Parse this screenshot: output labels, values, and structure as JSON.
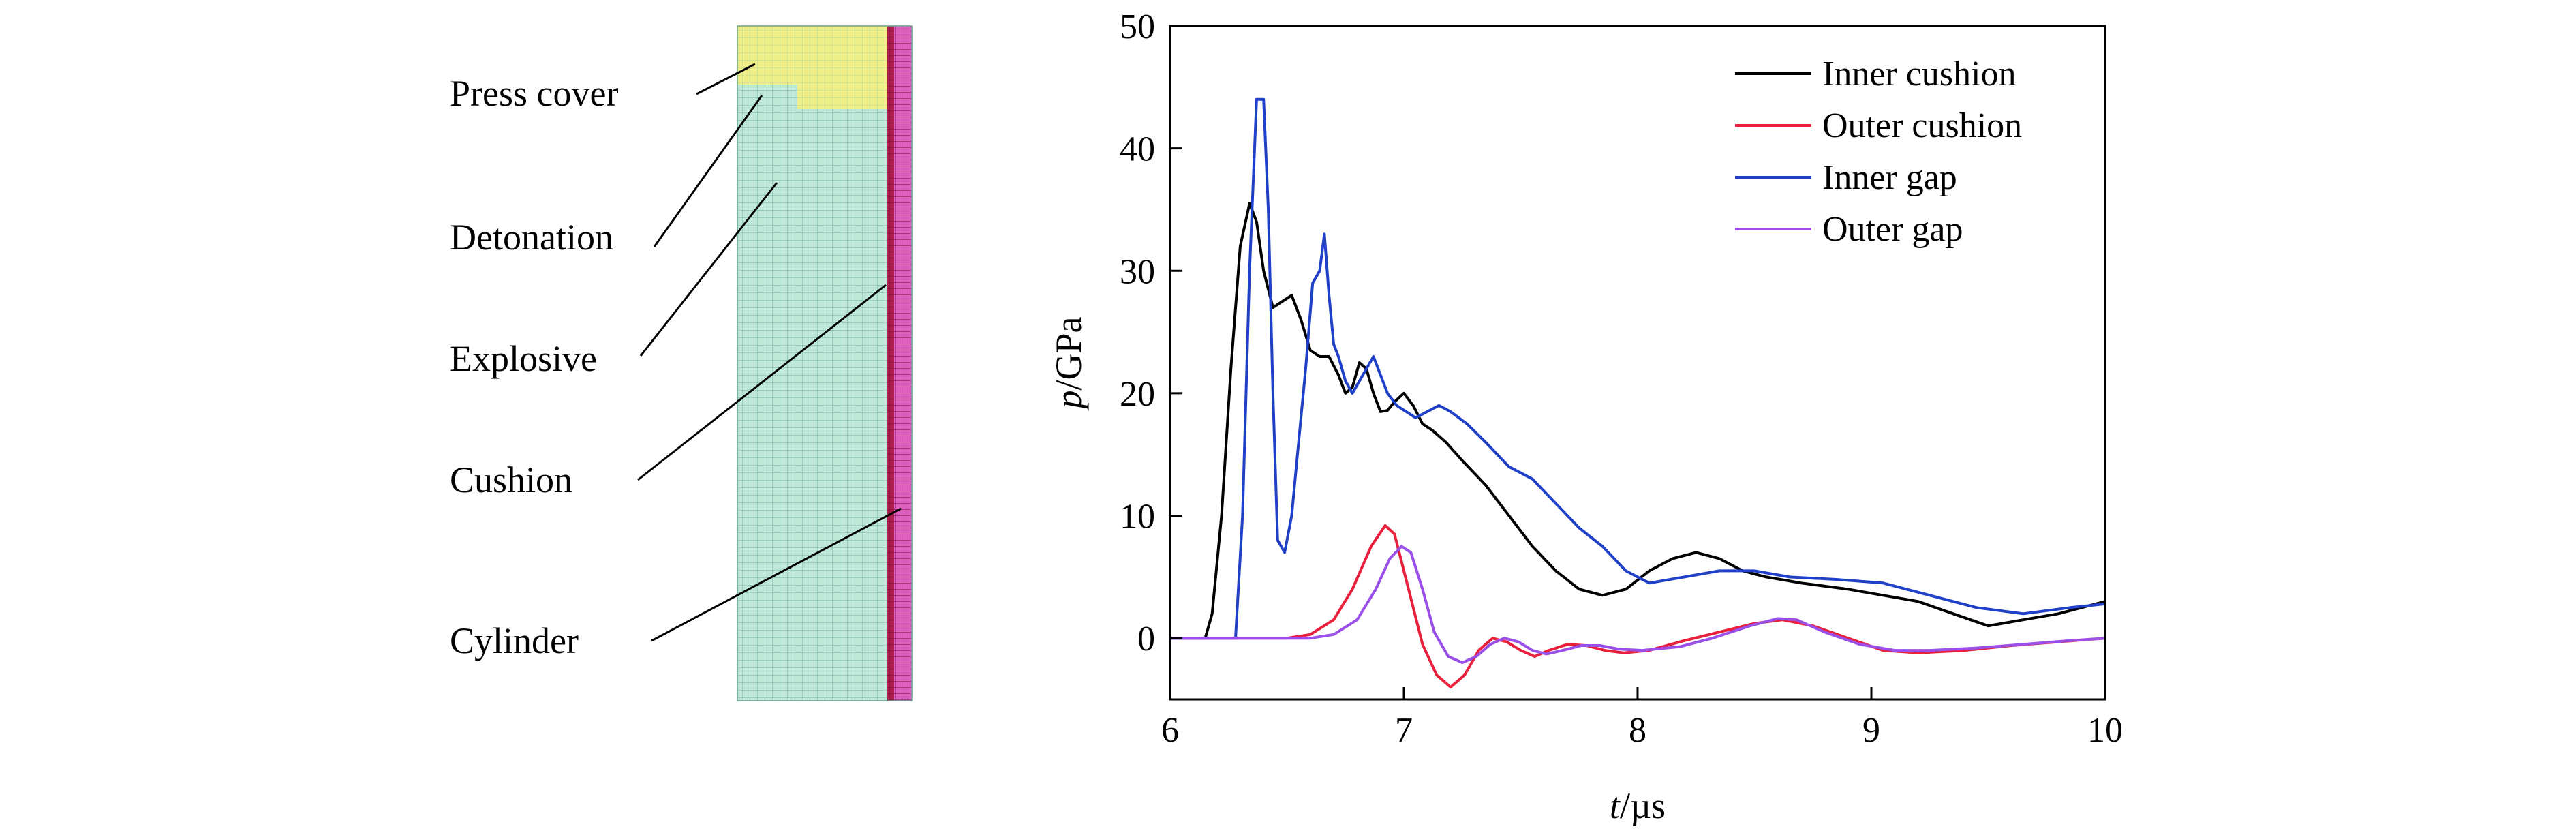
{
  "diagram": {
    "labels": [
      "Press cover",
      "Detonation",
      "Explosive",
      "Cushion",
      "Cylinder"
    ],
    "colors": {
      "press_cover": "#f0f08a",
      "explosive": "#bfe8d8",
      "cushion": "#c03060",
      "cylinder": "#e060c0",
      "grid": "#7fbfae"
    }
  },
  "chart_data": {
    "type": "line",
    "xlabel_var": "t",
    "xlabel_unit": "/µs",
    "ylabel_var": "p",
    "ylabel_unit": "/GPa",
    "xlim": [
      6,
      10
    ],
    "ylim": [
      -5,
      50
    ],
    "xticks": [
      "6",
      "7",
      "8",
      "9",
      "10"
    ],
    "yticks": [
      "0",
      "10",
      "20",
      "30",
      "40",
      "50"
    ],
    "legend_position": "top-right",
    "series": [
      {
        "name": "Inner cushion",
        "color": "#000000",
        "x": [
          6.0,
          6.15,
          6.18,
          6.22,
          6.26,
          6.3,
          6.34,
          6.37,
          6.4,
          6.44,
          6.48,
          6.52,
          6.56,
          6.6,
          6.64,
          6.68,
          6.72,
          6.75,
          6.78,
          6.81,
          6.84,
          6.87,
          6.9,
          6.93,
          6.96,
          7.0,
          7.04,
          7.08,
          7.12,
          7.18,
          7.25,
          7.35,
          7.45,
          7.55,
          7.65,
          7.75,
          7.85,
          7.95,
          8.05,
          8.15,
          8.25,
          8.35,
          8.45,
          8.55,
          8.7,
          8.9,
          9.05,
          9.2,
          9.35,
          9.5,
          9.65,
          9.8,
          10.0
        ],
        "y": [
          0,
          0,
          2,
          10,
          22,
          32,
          35.5,
          34,
          30,
          27,
          27.5,
          28,
          26,
          23.5,
          23,
          23,
          21.5,
          20,
          20.5,
          22.5,
          22,
          20,
          18.5,
          18.6,
          19.3,
          20,
          19,
          17.5,
          17,
          16,
          14.5,
          12.5,
          10,
          7.5,
          5.5,
          4,
          3.5,
          4,
          5.5,
          6.5,
          7,
          6.5,
          5.5,
          5,
          4.5,
          4,
          3.5,
          3,
          2,
          1,
          1.5,
          2,
          3
        ]
      },
      {
        "name": "Outer cushion",
        "color": "#e8203c",
        "x": [
          6.0,
          6.5,
          6.6,
          6.7,
          6.78,
          6.86,
          6.92,
          6.96,
          7.02,
          7.08,
          7.14,
          7.2,
          7.26,
          7.32,
          7.38,
          7.44,
          7.5,
          7.56,
          7.62,
          7.7,
          7.78,
          7.86,
          7.94,
          8.05,
          8.2,
          8.35,
          8.5,
          8.62,
          8.75,
          8.9,
          9.05,
          9.2,
          9.4,
          9.6,
          9.8,
          10.0
        ],
        "y": [
          0,
          0,
          0.3,
          1.5,
          4,
          7.5,
          9.2,
          8.5,
          4,
          -0.5,
          -3,
          -4,
          -3,
          -1,
          0,
          -0.3,
          -1,
          -1.5,
          -1,
          -0.5,
          -0.6,
          -1,
          -1.2,
          -1,
          -0.2,
          0.5,
          1.2,
          1.5,
          1,
          0,
          -1,
          -1.2,
          -1,
          -0.6,
          -0.3,
          0
        ]
      },
      {
        "name": "Inner gap",
        "color": "#2040c8",
        "x": [
          6.0,
          6.28,
          6.31,
          6.34,
          6.37,
          6.4,
          6.42,
          6.44,
          6.46,
          6.49,
          6.52,
          6.55,
          6.58,
          6.61,
          6.64,
          6.66,
          6.68,
          6.7,
          6.72,
          6.75,
          6.78,
          6.81,
          6.84,
          6.87,
          6.9,
          6.93,
          6.97,
          7.01,
          7.05,
          7.1,
          7.15,
          7.2,
          7.27,
          7.35,
          7.45,
          7.55,
          7.65,
          7.75,
          7.85,
          7.95,
          8.05,
          8.2,
          8.35,
          8.5,
          8.65,
          8.85,
          9.05,
          9.25,
          9.45,
          9.65,
          9.85,
          10.0
        ],
        "y": [
          0,
          0,
          10,
          30,
          44,
          44,
          35,
          20,
          8,
          7,
          10,
          16,
          22,
          29,
          30,
          33,
          28,
          24,
          23,
          21,
          20,
          21,
          22,
          23,
          21.5,
          20,
          19,
          18.5,
          18,
          18.5,
          19,
          18.5,
          17.5,
          16,
          14,
          13,
          11,
          9,
          7.5,
          5.5,
          4.5,
          5,
          5.5,
          5.5,
          5,
          4.8,
          4.5,
          3.5,
          2.5,
          2,
          2.5,
          2.8
        ]
      },
      {
        "name": "Outer gap",
        "color": "#9a50e8",
        "x": [
          6.0,
          6.6,
          6.7,
          6.8,
          6.88,
          6.94,
          6.99,
          7.03,
          7.08,
          7.13,
          7.19,
          7.25,
          7.31,
          7.37,
          7.43,
          7.49,
          7.55,
          7.61,
          7.68,
          7.76,
          7.84,
          7.92,
          8.02,
          8.18,
          8.32,
          8.48,
          8.6,
          8.68,
          8.8,
          8.95,
          9.1,
          9.25,
          9.45,
          9.65,
          9.85,
          10.0
        ],
        "y": [
          0,
          0,
          0.3,
          1.5,
          4,
          6.5,
          7.5,
          7,
          4,
          0.5,
          -1.5,
          -2,
          -1.5,
          -0.5,
          0,
          -0.3,
          -1,
          -1.3,
          -1,
          -0.6,
          -0.6,
          -0.9,
          -1,
          -0.7,
          0,
          1,
          1.6,
          1.5,
          0.5,
          -0.5,
          -1,
          -1,
          -0.8,
          -0.5,
          -0.2,
          0
        ]
      }
    ]
  }
}
